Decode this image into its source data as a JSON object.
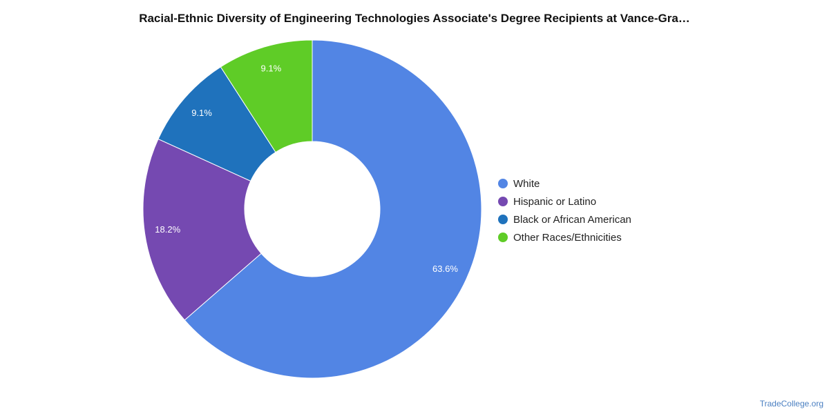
{
  "chart_data": {
    "type": "pie",
    "title": "Racial-Ethnic Diversity of Engineering Technologies Associate's Degree Recipients at Vance-Gra…",
    "legend_position": "right",
    "slices": [
      {
        "label": "White",
        "value": 63.6,
        "value_label": "63.6%",
        "color": "#5285e4"
      },
      {
        "label": "Hispanic or Latino",
        "value": 18.2,
        "value_label": "18.2%",
        "color": "#7549b1"
      },
      {
        "label": "Black or African American",
        "value": 9.1,
        "value_label": "9.1%",
        "color": "#1f72bc"
      },
      {
        "label": "Other Races/Ethnicities",
        "value": 9.1,
        "value_label": "9.1%",
        "color": "#5fcc27"
      }
    ]
  },
  "watermark": "TradeCollege.org"
}
